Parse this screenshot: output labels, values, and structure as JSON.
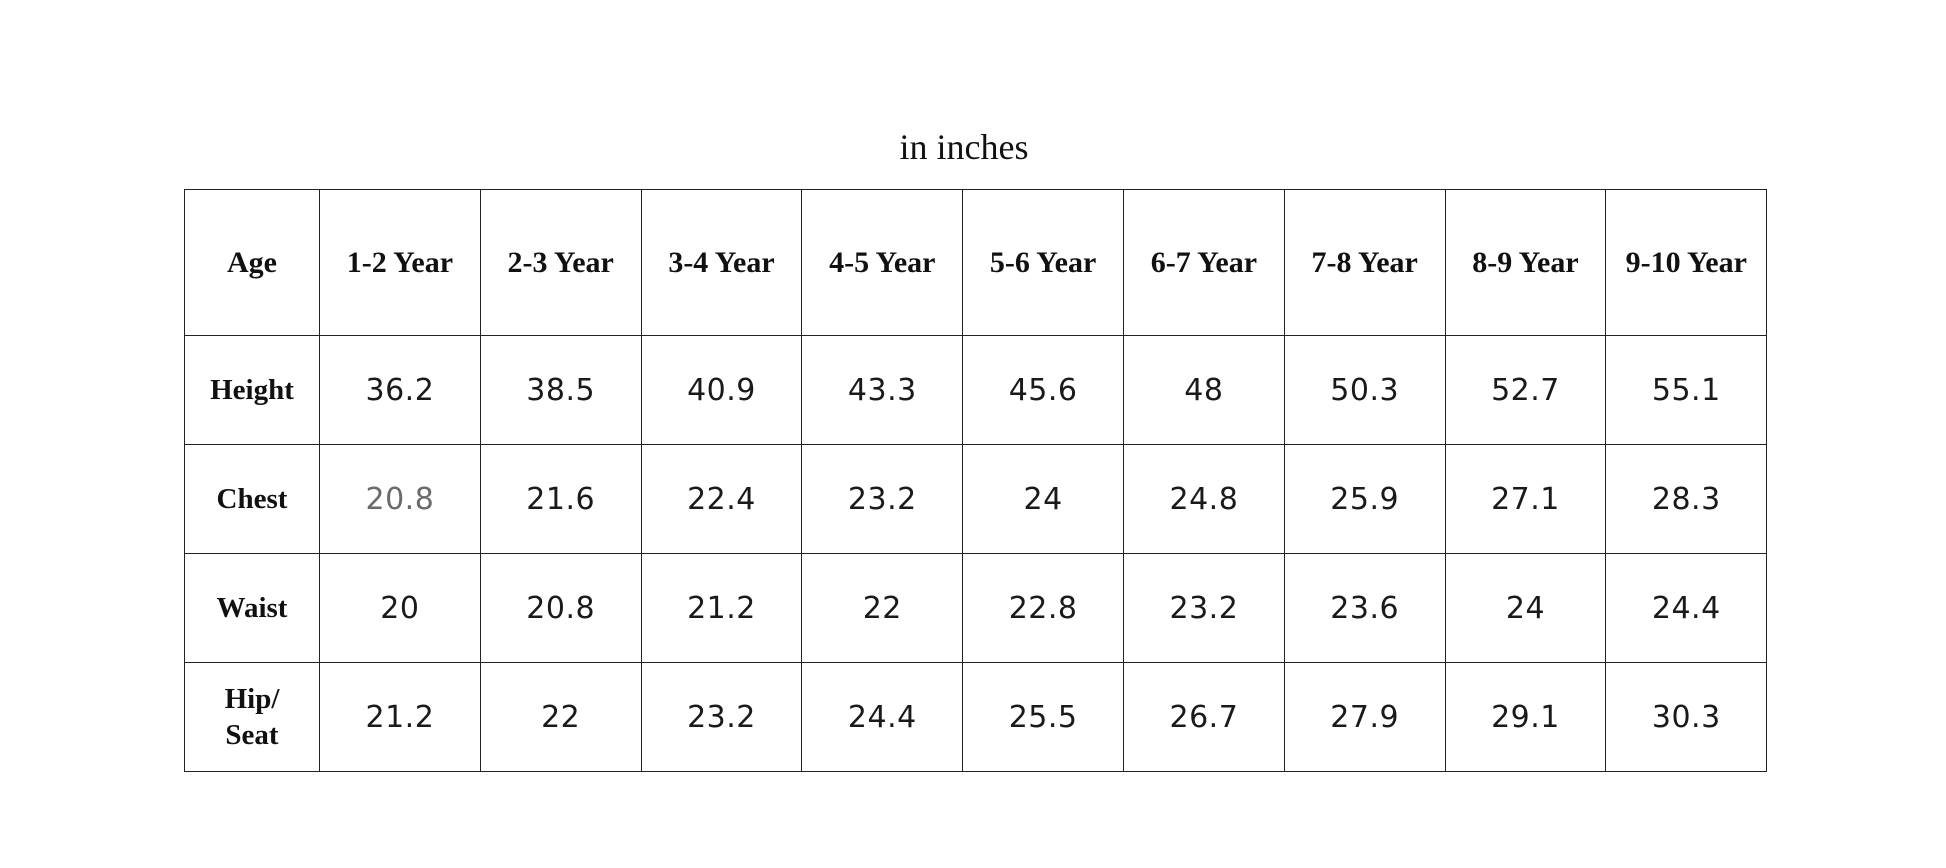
{
  "caption": "in inches",
  "table": {
    "columns": [
      "Age",
      "1-2 Year",
      "2-3 Year",
      "3-4 Year",
      "4-5 Year",
      "5-6 Year",
      "6-7 Year",
      "7-8 Year",
      "8-9 Year",
      "9-10 Year"
    ],
    "rows": [
      {
        "label": "Height",
        "values": [
          "36.2",
          "38.5",
          "40.9",
          "43.3",
          "45.6",
          "48",
          "50.3",
          "52.7",
          "55.1"
        ]
      },
      {
        "label": "Chest",
        "values": [
          "20.8",
          "21.6",
          "22.4",
          "23.2",
          "24",
          "24.8",
          "25.9",
          "27.1",
          "28.3"
        ]
      },
      {
        "label": "Waist",
        "values": [
          "20",
          "20.8",
          "21.2",
          "22",
          "22.8",
          "23.2",
          "23.6",
          "24",
          "24.4"
        ]
      },
      {
        "label": "Hip/\nSeat",
        "values": [
          "21.2",
          "22",
          "23.2",
          "24.4",
          "25.5",
          "26.7",
          "27.9",
          "29.1",
          "30.3"
        ]
      }
    ],
    "muted_value_color": "#6b6b6b"
  }
}
